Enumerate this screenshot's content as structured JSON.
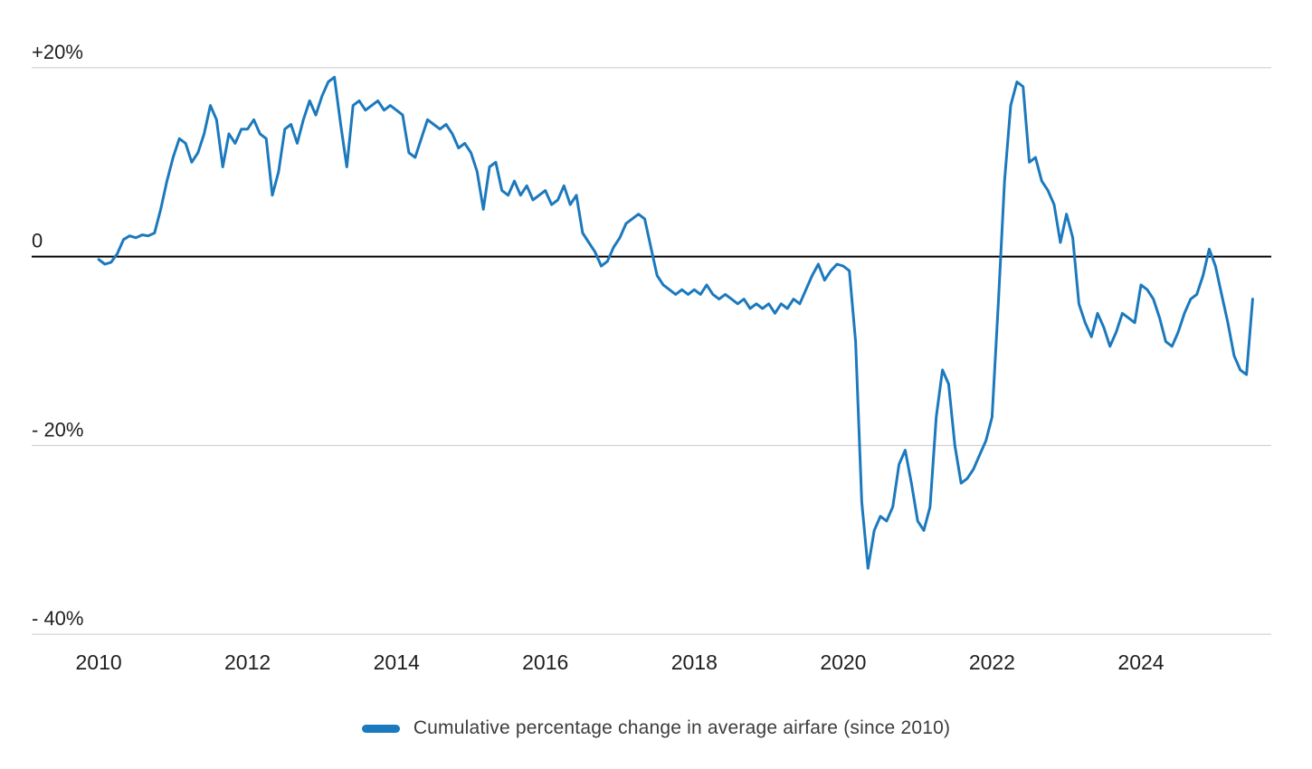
{
  "chart_data": {
    "type": "line",
    "legend_label": "Cumulative percentage change in average airfare (since 2010)",
    "line_color": "#1b79bd",
    "grid_color": "#c9c9c9",
    "zero_line_color": "#000000",
    "label_color": "#1f1f1f",
    "legend_position": "bottom",
    "x_start_year": 2010,
    "x_step_months": 1,
    "xlim": [
      2009.1,
      2025.75
    ],
    "ylim": [
      -42,
      22
    ],
    "yticks": [
      {
        "value": 20,
        "label": "+20%"
      },
      {
        "value": 0,
        "label": "0"
      },
      {
        "value": -20,
        "label": "- 20%"
      },
      {
        "value": -40,
        "label": "- 40%"
      }
    ],
    "xticks": [
      {
        "value": 2010,
        "label": "2010"
      },
      {
        "value": 2012,
        "label": "2012"
      },
      {
        "value": 2014,
        "label": "2014"
      },
      {
        "value": 2016,
        "label": "2016"
      },
      {
        "value": 2018,
        "label": "2018"
      },
      {
        "value": 2020,
        "label": "2020"
      },
      {
        "value": 2022,
        "label": "2022"
      },
      {
        "value": 2024,
        "label": "2024"
      }
    ],
    "values": [
      -0.3,
      -0.8,
      -0.6,
      0.3,
      1.8,
      2.2,
      2.0,
      2.3,
      2.2,
      2.5,
      5.0,
      8.0,
      10.5,
      12.5,
      12.0,
      10.0,
      11.0,
      13.0,
      16.0,
      14.5,
      9.5,
      13.0,
      12.0,
      13.5,
      13.5,
      14.5,
      13.0,
      12.5,
      6.5,
      9.0,
      13.5,
      14.0,
      12.0,
      14.5,
      16.5,
      15.0,
      17.0,
      18.5,
      19.0,
      14.0,
      9.5,
      16.0,
      16.5,
      15.5,
      16.0,
      16.5,
      15.5,
      16.0,
      15.5,
      15.0,
      11.0,
      10.5,
      12.5,
      14.5,
      14.0,
      13.5,
      14.0,
      13.0,
      11.5,
      12.0,
      11.0,
      9.0,
      5.0,
      9.5,
      10.0,
      7.0,
      6.5,
      8.0,
      6.5,
      7.5,
      6.0,
      6.5,
      7.0,
      5.5,
      6.0,
      7.5,
      5.5,
      6.5,
      2.5,
      1.5,
      0.5,
      -1.0,
      -0.5,
      1.0,
      2.0,
      3.5,
      4.0,
      4.5,
      4.0,
      1.0,
      -2.0,
      -3.0,
      -3.5,
      -4.0,
      -3.5,
      -4.0,
      -3.5,
      -4.0,
      -3.0,
      -4.0,
      -4.5,
      -4.0,
      -4.5,
      -5.0,
      -4.5,
      -5.5,
      -5.0,
      -5.5,
      -5.0,
      -6.0,
      -5.0,
      -5.5,
      -4.5,
      -5.0,
      -3.5,
      -2.0,
      -0.8,
      -2.5,
      -1.5,
      -0.8,
      -1.0,
      -1.5,
      -9.0,
      -26.0,
      -33.0,
      -29.0,
      -27.5,
      -28.0,
      -26.5,
      -22.0,
      -20.5,
      -24.0,
      -28.0,
      -29.0,
      -26.5,
      -17.0,
      -12.0,
      -13.5,
      -20.0,
      -24.0,
      -23.5,
      -22.5,
      -21.0,
      -19.5,
      -17.0,
      -5.0,
      8.0,
      16.0,
      18.5,
      18.0,
      10.0,
      10.5,
      8.0,
      7.0,
      5.5,
      1.5,
      4.5,
      2.0,
      -5.0,
      -7.0,
      -8.5,
      -6.0,
      -7.5,
      -9.5,
      -8.0,
      -6.0,
      -6.5,
      -7.0,
      -3.0,
      -3.5,
      -4.5,
      -6.5,
      -9.0,
      -9.5,
      -8.0,
      -6.0,
      -4.5,
      -4.0,
      -2.0,
      0.8,
      -1.0,
      -4.0,
      -7.0,
      -10.5,
      -12.0,
      -12.5,
      -4.5
    ]
  }
}
